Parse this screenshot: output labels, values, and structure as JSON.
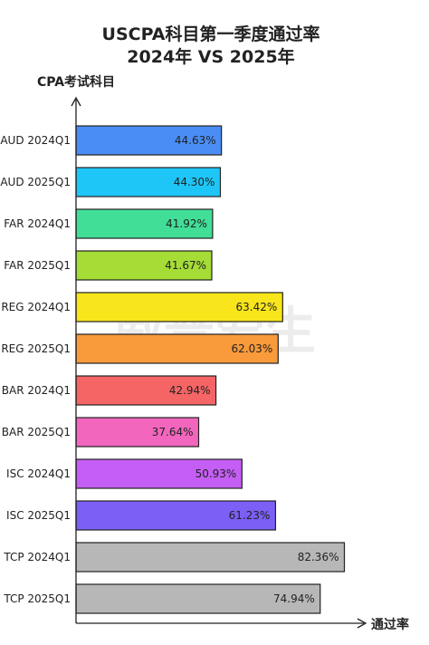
{
  "chart_data": {
    "type": "bar",
    "orientation": "horizontal",
    "title": [
      "USCPA科目第一季度通过率",
      "2024年 VS 2025年"
    ],
    "ylabel": "CPA考试科目",
    "xlabel": "通过率",
    "xlim": [
      0,
      100
    ],
    "categories": [
      "AUD 2024Q1",
      "AUD 2025Q1",
      "FAR 2024Q1",
      "FAR 2025Q1",
      "REG 2024Q1",
      "REG 2025Q1",
      "BAR 2024Q1",
      "BAR 2025Q1",
      "ISC 2024Q1",
      "ISC 2025Q1",
      "TCP 2024Q1",
      "TCP 2025Q1"
    ],
    "values": [
      44.63,
      44.3,
      41.92,
      41.67,
      63.42,
      62.03,
      42.94,
      37.64,
      50.93,
      61.23,
      82.36,
      74.94
    ],
    "data_labels": [
      "44.63%",
      "44.30%",
      "41.92%",
      "41.67%",
      "63.42%",
      "62.03%",
      "42.94%",
      "37.64%",
      "50.93%",
      "61.23%",
      "82.36%",
      "74.94%"
    ],
    "colors": [
      "#4a8ef5",
      "#1ec6f7",
      "#41de97",
      "#a5dc36",
      "#f9e51b",
      "#f99a3b",
      "#f56565",
      "#f266bd",
      "#c45ef4",
      "#7c5ff5",
      "#b7b7b7",
      "#b7b7b7"
    ],
    "grid": false,
    "legend": "none"
  },
  "watermark": "威普爱生"
}
